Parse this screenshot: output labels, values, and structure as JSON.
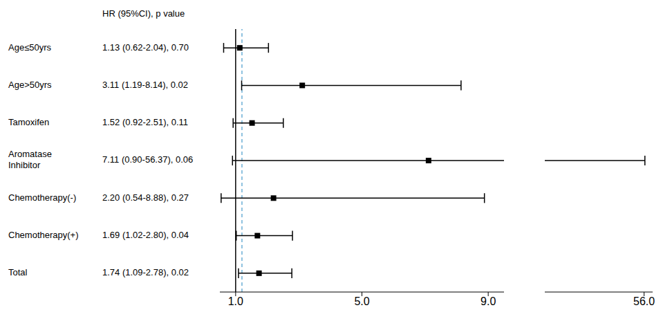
{
  "chart_data": {
    "type": "forest",
    "header": "HR (95%CI),  p value",
    "categories": [
      "Age≤50yrs",
      "Age>50yrs",
      "Tamoxifen",
      "Aromatase\nInhibitor",
      "Chemotherapy(-)",
      "Chemotherapy(+)",
      "Total"
    ],
    "values": [
      1.13,
      3.11,
      1.52,
      7.11,
      2.2,
      1.69,
      1.74
    ],
    "value_labels": [
      "1.13 (0.62-2.04), 0.70",
      "3.11 (1.19-8.14), 0.02",
      "1.52 (0.92-2.51), 0.11",
      "7.11 (0.90-56.37), 0.06",
      "2.20 (0.54-8.88), 0.27",
      "1.69 (1.02-2.80), 0.04",
      "1.74 (1.09-2.78), 0.02"
    ],
    "ci_low": [
      0.62,
      1.19,
      0.92,
      0.9,
      0.54,
      1.02,
      1.09
    ],
    "ci_high": [
      2.04,
      8.14,
      2.51,
      56.37,
      8.88,
      2.8,
      2.78
    ],
    "color": "#000000",
    "xlim": [
      0.5,
      60.0
    ],
    "xbreak": 9.5,
    "xticks": [
      {
        "value": 1.0,
        "label": "1.0"
      },
      {
        "value": 5.0,
        "label": "5.0"
      },
      {
        "value": 9.0,
        "label": "9.0"
      },
      {
        "value": 56.0,
        "label": "56.0"
      }
    ],
    "reference_lines": [
      {
        "value": 1.0,
        "color": "#000000",
        "line_style": "solid"
      },
      {
        "value": 1.2,
        "color": "#6baed6",
        "line_style": "dashed"
      }
    ]
  }
}
